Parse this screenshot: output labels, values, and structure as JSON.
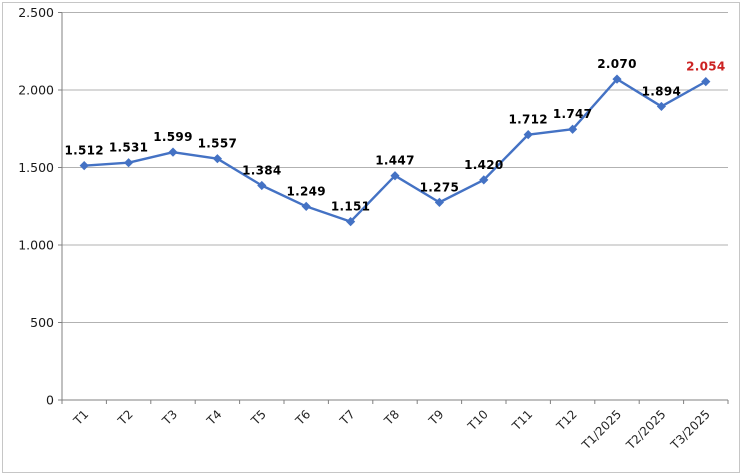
{
  "chart_data": {
    "type": "line",
    "title": "",
    "xlabel": "",
    "ylabel": "",
    "categories": [
      "T1",
      "T2",
      "T3",
      "T4",
      "T5",
      "T6",
      "T7",
      "T8",
      "T9",
      "T10",
      "T11",
      "T12",
      "T1/2025",
      "T2/2025",
      "T3/2025"
    ],
    "values": [
      1512,
      1531,
      1599,
      1557,
      1384,
      1249,
      1151,
      1447,
      1275,
      1420,
      1712,
      1747,
      2070,
      1894,
      2054
    ],
    "data_labels": [
      "1.512",
      "1.531",
      "1.599",
      "1.557",
      "1.384",
      "1.249",
      "1.151",
      "1.447",
      "1.275",
      "1.420",
      "1.712",
      "1.747",
      "2.070",
      "1.894",
      "2.054"
    ],
    "highlight_index": 14,
    "highlight_color": "#cc2222",
    "label_color": "#000000",
    "line_color": "#4472c4",
    "marker": "diamond",
    "y_ticks": [
      0,
      500,
      1000,
      1500,
      2000,
      2500
    ],
    "y_tick_labels": [
      "0",
      "500",
      "1.000",
      "1.500",
      "2.000",
      "2.500"
    ],
    "ylim": [
      0,
      2500
    ],
    "grid": true,
    "legend": false,
    "grid_color": "#b2b2b2",
    "axis_color": "#808080",
    "frame_border_color": "#c6c6c6",
    "x_label_rotation_deg": -45
  }
}
